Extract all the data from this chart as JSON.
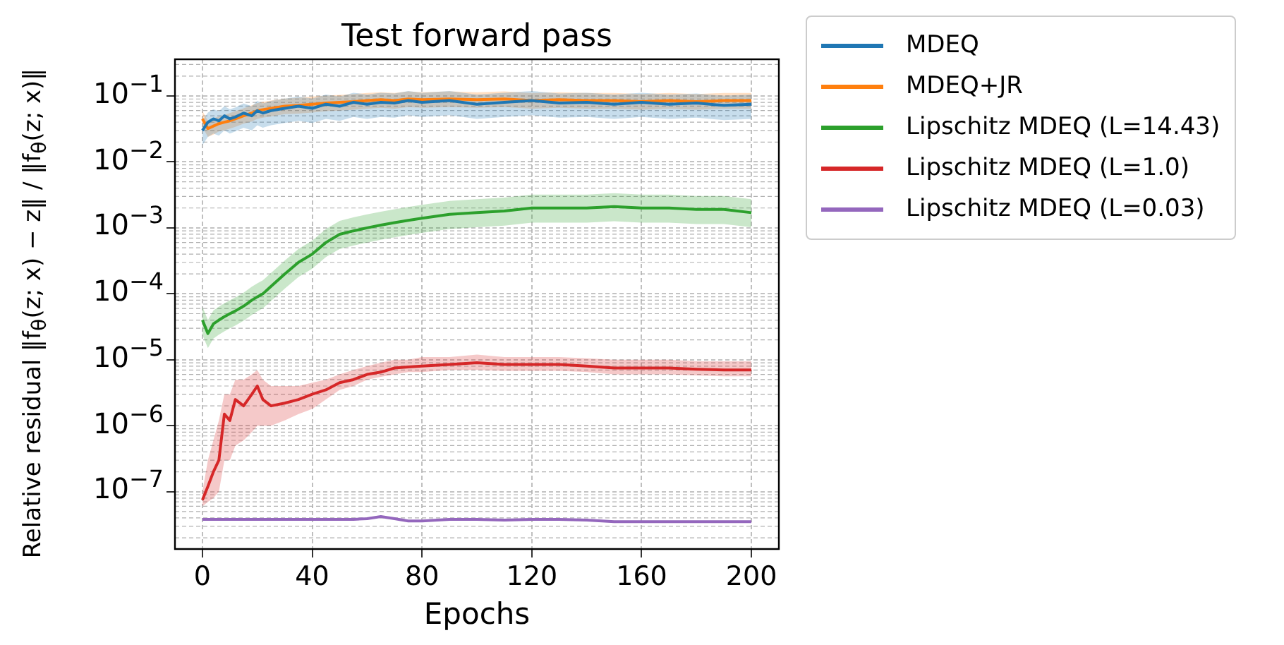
{
  "chart_data": {
    "type": "line",
    "title": "Test forward pass",
    "xlabel": "Epochs",
    "ylabel": "Relative residual ‖f$_{θ}$(z; x) − z‖ / ‖f$_{θ}$(z; x)‖",
    "x": [
      0,
      2,
      4,
      6,
      8,
      10,
      12,
      15,
      18,
      20,
      22,
      25,
      30,
      35,
      40,
      45,
      50,
      55,
      60,
      65,
      70,
      75,
      80,
      90,
      100,
      110,
      120,
      130,
      140,
      150,
      160,
      170,
      180,
      190,
      200
    ],
    "series": [
      {
        "name": "MDEQ",
        "color": "#1f77b4",
        "values": [
          0.03,
          0.04,
          0.045,
          0.042,
          0.05,
          0.045,
          0.048,
          0.055,
          0.05,
          0.06,
          0.055,
          0.06,
          0.065,
          0.07,
          0.065,
          0.075,
          0.07,
          0.08,
          0.075,
          0.08,
          0.078,
          0.085,
          0.08,
          0.085,
          0.075,
          0.08,
          0.085,
          0.078,
          0.08,
          0.075,
          0.08,
          0.075,
          0.078,
          0.072,
          0.075
        ],
        "lower": [
          0.018,
          0.024,
          0.027,
          0.025,
          0.03,
          0.027,
          0.029,
          0.033,
          0.03,
          0.036,
          0.033,
          0.036,
          0.039,
          0.042,
          0.039,
          0.045,
          0.042,
          0.048,
          0.045,
          0.048,
          0.047,
          0.051,
          0.048,
          0.051,
          0.045,
          0.048,
          0.051,
          0.047,
          0.048,
          0.045,
          0.048,
          0.045,
          0.047,
          0.043,
          0.045
        ],
        "upper": [
          0.042,
          0.056,
          0.063,
          0.059,
          0.07,
          0.063,
          0.067,
          0.077,
          0.07,
          0.084,
          0.077,
          0.084,
          0.091,
          0.098,
          0.091,
          0.105,
          0.098,
          0.112,
          0.105,
          0.112,
          0.109,
          0.119,
          0.112,
          0.119,
          0.105,
          0.112,
          0.119,
          0.109,
          0.112,
          0.105,
          0.112,
          0.105,
          0.109,
          0.101,
          0.105
        ]
      },
      {
        "name": "MDEQ+JR",
        "color": "#ff7f0e",
        "values": [
          0.045,
          0.032,
          0.035,
          0.038,
          0.04,
          0.042,
          0.045,
          0.05,
          0.055,
          0.06,
          0.062,
          0.065,
          0.07,
          0.072,
          0.075,
          0.078,
          0.08,
          0.082,
          0.085,
          0.088,
          0.085,
          0.09,
          0.088,
          0.09,
          0.088,
          0.09,
          0.085,
          0.088,
          0.085,
          0.085,
          0.082,
          0.085,
          0.082,
          0.085,
          0.085
        ],
        "lower": [
          0.034,
          0.024,
          0.026,
          0.029,
          0.03,
          0.032,
          0.034,
          0.038,
          0.041,
          0.045,
          0.047,
          0.049,
          0.053,
          0.054,
          0.056,
          0.059,
          0.06,
          0.062,
          0.064,
          0.066,
          0.064,
          0.068,
          0.066,
          0.068,
          0.066,
          0.068,
          0.064,
          0.066,
          0.064,
          0.064,
          0.062,
          0.064,
          0.062,
          0.064,
          0.064
        ],
        "upper": [
          0.059,
          0.042,
          0.046,
          0.049,
          0.052,
          0.055,
          0.059,
          0.065,
          0.072,
          0.078,
          0.081,
          0.085,
          0.091,
          0.094,
          0.098,
          0.101,
          0.104,
          0.107,
          0.111,
          0.114,
          0.111,
          0.117,
          0.114,
          0.117,
          0.114,
          0.117,
          0.111,
          0.114,
          0.111,
          0.111,
          0.107,
          0.111,
          0.107,
          0.111,
          0.111
        ]
      },
      {
        "name": "Lipschitz MDEQ (L=14.43)",
        "color": "#2ca02c",
        "values": [
          4e-05,
          2.5e-05,
          3.5e-05,
          4e-05,
          4.5e-05,
          5e-05,
          5.5e-05,
          6.5e-05,
          8e-05,
          9e-05,
          0.0001,
          0.00013,
          0.0002,
          0.0003,
          0.0004,
          0.0006,
          0.0008,
          0.0009,
          0.001,
          0.0011,
          0.0012,
          0.0013,
          0.0014,
          0.0016,
          0.0017,
          0.0018,
          0.002,
          0.002,
          0.002,
          0.0021,
          0.002,
          0.002,
          0.0019,
          0.0019,
          0.0017
        ],
        "lower": [
          2.4e-05,
          1.5e-05,
          2.1e-05,
          2.4e-05,
          2.7e-05,
          3e-05,
          3.3e-05,
          3.9e-05,
          4.8e-05,
          5.4e-05,
          6e-05,
          7.8e-05,
          0.00012,
          0.00018,
          0.00024,
          0.00036,
          0.00048,
          0.00054,
          0.0006,
          0.00066,
          0.00072,
          0.00078,
          0.00084,
          0.00096,
          0.00102,
          0.00108,
          0.0012,
          0.0012,
          0.0012,
          0.00126,
          0.0012,
          0.0012,
          0.00114,
          0.00114,
          0.00102
        ],
        "upper": [
          6.4e-05,
          4e-05,
          5.6e-05,
          6.4e-05,
          7.2e-05,
          8e-05,
          8.8e-05,
          0.000104,
          0.000128,
          0.000144,
          0.00016,
          0.000208,
          0.00032,
          0.00048,
          0.00064,
          0.00096,
          0.00128,
          0.00144,
          0.0016,
          0.00176,
          0.00192,
          0.00208,
          0.00224,
          0.00256,
          0.00272,
          0.00288,
          0.0032,
          0.0032,
          0.0032,
          0.00336,
          0.0032,
          0.0032,
          0.00304,
          0.00304,
          0.00272
        ]
      },
      {
        "name": "Lipschitz MDEQ (L=1.0)",
        "color": "#d62728",
        "values": [
          7.5e-08,
          1.2e-07,
          2e-07,
          3e-07,
          1.5e-06,
          1.2e-06,
          2.5e-06,
          2e-06,
          3e-06,
          4e-06,
          2.5e-06,
          2e-06,
          2.2e-06,
          2.5e-06,
          3e-06,
          3.5e-06,
          4.5e-06,
          5e-06,
          6e-06,
          6.5e-06,
          7.5e-06,
          7.8e-06,
          8e-06,
          8.5e-06,
          9e-06,
          8.5e-06,
          8.5e-06,
          8.5e-06,
          8e-06,
          7.5e-06,
          7.5e-06,
          7.5e-06,
          7.2e-06,
          7e-06,
          7e-06
        ],
        "lower": [
          6e-08,
          7e-08,
          8e-08,
          1e-07,
          3e-07,
          3e-07,
          5e-07,
          6e-07,
          8e-07,
          1e-06,
          1e-06,
          1e-06,
          1.2e-06,
          1.5e-06,
          1.8e-06,
          2.5e-06,
          3.5e-06,
          4e-06,
          5e-06,
          5.5e-06,
          6e-06,
          6.5e-06,
          6.5e-06,
          7e-06,
          7e-06,
          6.8e-06,
          6.8e-06,
          6.8e-06,
          6.5e-06,
          6e-06,
          6e-06,
          6e-06,
          5.8e-06,
          5.6e-06,
          5.6e-06
        ],
        "upper": [
          1e-07,
          3e-07,
          6e-07,
          1.2e-06,
          3e-06,
          3e-06,
          5e-06,
          5e-06,
          6e-06,
          7e-06,
          5e-06,
          4e-06,
          4e-06,
          4e-06,
          4.5e-06,
          5e-06,
          6e-06,
          7e-06,
          8e-06,
          9e-06,
          1e-05,
          1e-05,
          1.1e-05,
          1.1e-05,
          1.2e-05,
          1.1e-05,
          1.1e-05,
          1.1e-05,
          1.05e-05,
          1e-05,
          1e-05,
          1e-05,
          9.5e-06,
          9.5e-06,
          9.5e-06
        ]
      },
      {
        "name": "Lipschitz MDEQ (L=0.03)",
        "color": "#9467bd",
        "values": [
          3.8e-08,
          3.8e-08,
          3.8e-08,
          3.8e-08,
          3.8e-08,
          3.8e-08,
          3.8e-08,
          3.8e-08,
          3.8e-08,
          3.8e-08,
          3.8e-08,
          3.8e-08,
          3.8e-08,
          3.8e-08,
          3.8e-08,
          3.8e-08,
          3.8e-08,
          3.8e-08,
          3.9e-08,
          4.2e-08,
          3.9e-08,
          3.6e-08,
          3.6e-08,
          3.8e-08,
          3.8e-08,
          3.7e-08,
          3.8e-08,
          3.8e-08,
          3.7e-08,
          3.5e-08,
          3.5e-08,
          3.5e-08,
          3.5e-08,
          3.5e-08,
          3.5e-08
        ]
      }
    ],
    "log": "y",
    "xlim": [
      -10,
      210
    ],
    "ylim": [
      1.35e-08,
      0.36
    ],
    "xticks": [
      0,
      40,
      80,
      120,
      160,
      200
    ],
    "yticks": [
      {
        "value": 1e-07,
        "label": "10$^{−7}$"
      },
      {
        "value": 1e-06,
        "label": "10$^{−6}$"
      },
      {
        "value": 1e-05,
        "label": "10$^{−5}$"
      },
      {
        "value": 0.0001,
        "label": "10$^{−4}$"
      },
      {
        "value": 0.001,
        "label": "10$^{−3}$"
      },
      {
        "value": 0.01,
        "label": "10$^{−2}$"
      },
      {
        "value": 0.1,
        "label": "10$^{−1}$"
      }
    ],
    "grid": true,
    "legend": "right",
    "marker": "none",
    "line_style": "solid"
  }
}
